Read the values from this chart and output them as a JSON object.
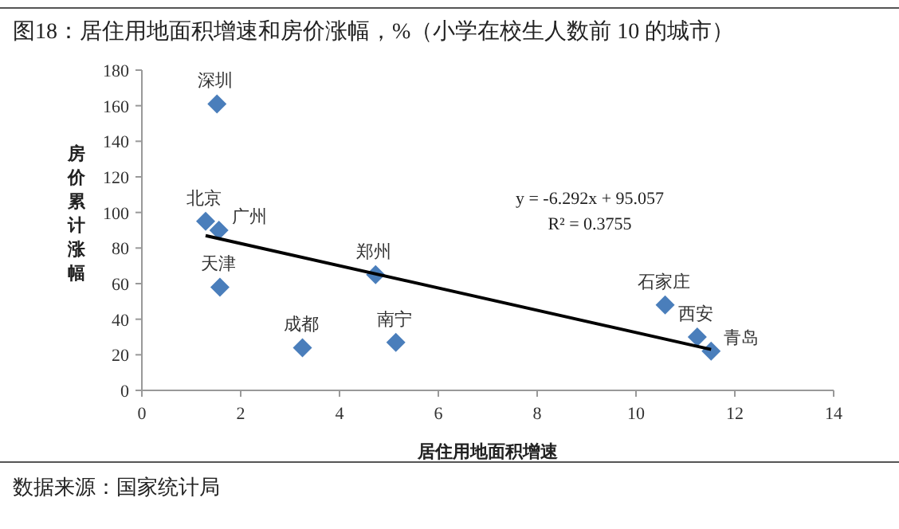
{
  "chart_data": {
    "type": "scatter",
    "title": "图18：居住用地面积增速和房价涨幅，%（小学在校生人数前 10 的城市）",
    "xlabel": "居住用地面积增速",
    "ylabel": "房价累计涨幅",
    "xlim": [
      0,
      14
    ],
    "xticks": [
      0,
      2,
      4,
      6,
      8,
      10,
      12,
      14
    ],
    "ylim": [
      0,
      180
    ],
    "yticks": [
      0,
      20,
      40,
      60,
      80,
      100,
      120,
      140,
      160,
      180
    ],
    "grid": false,
    "series": [
      {
        "marker": "diamond",
        "color": "#4a7ebb",
        "x": [
          1.52,
          1.29,
          1.56,
          1.58,
          3.25,
          4.73,
          5.14,
          10.59,
          11.24,
          11.52
        ],
        "values": [
          161,
          95,
          90,
          58,
          24,
          65,
          27,
          48,
          30,
          22
        ]
      },
      {
        "type": "line",
        "marker": "none",
        "line_style": "solid",
        "color": "#000000",
        "x": [
          1.29,
          11.52
        ],
        "values": [
          87,
          23
        ]
      }
    ],
    "annotations": [
      {
        "text": "深圳",
        "x": 1.52,
        "y": 161
      },
      {
        "text": "北京",
        "x": 1.29,
        "y": 95
      },
      {
        "text": "广州",
        "x": 1.56,
        "y": 90
      },
      {
        "text": "天津",
        "x": 1.58,
        "y": 58
      },
      {
        "text": "成都",
        "x": 3.25,
        "y": 24
      },
      {
        "text": "郑州",
        "x": 4.73,
        "y": 65
      },
      {
        "text": "南宁",
        "x": 5.14,
        "y": 27
      },
      {
        "text": "石家庄",
        "x": 10.59,
        "y": 48
      },
      {
        "text": "西安",
        "x": 11.24,
        "y": 30
      },
      {
        "text": "青岛",
        "x": 11.52,
        "y": 22
      },
      "y = -6.292x + 95.057",
      "R² = 0.3755",
      "数据来源：国家统计局"
    ]
  }
}
